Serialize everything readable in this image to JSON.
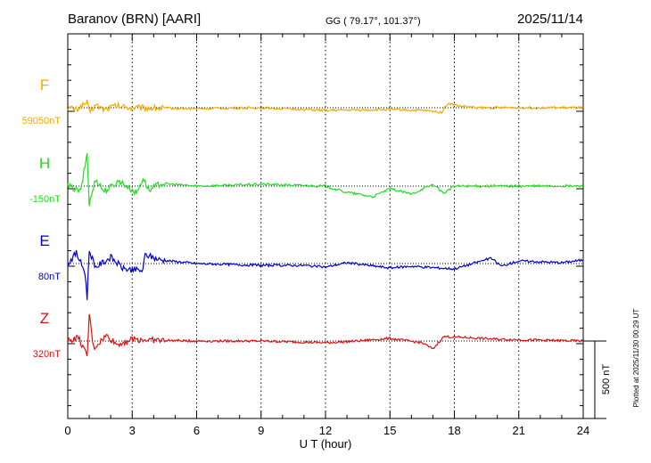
{
  "header": {
    "station": "Baranov (BRN)  [AARI]",
    "coords": "GG ( 79.17°, 101.37°)",
    "date": "2025/11/14"
  },
  "side_note": "Plotted at 2025/11/30 00:29 UT",
  "chart_data": {
    "type": "line",
    "title": "",
    "xlabel": "U T (hour)",
    "ylabel": "",
    "xlim": [
      0,
      24
    ],
    "x_ticks": [
      "0",
      "3",
      "6",
      "9",
      "12",
      "15",
      "18",
      "21",
      "24"
    ],
    "grid": "dotted vertical every 3 h, dotted baseline per trace",
    "scale_bar": {
      "label": "500 nT",
      "value_nT": 500
    },
    "series": [
      {
        "name": "F",
        "baseline": "59050nT",
        "color": "#f2a900",
        "points": [
          [
            0,
            0
          ],
          [
            0.4,
            -2
          ],
          [
            0.9,
            6
          ],
          [
            1.0,
            -5
          ],
          [
            1.3,
            3
          ],
          [
            1.7,
            -2
          ],
          [
            2.2,
            2
          ],
          [
            3,
            0
          ],
          [
            6,
            -1
          ],
          [
            9,
            0
          ],
          [
            12,
            -3
          ],
          [
            15,
            -2
          ],
          [
            16.5,
            -3
          ],
          [
            17.4,
            -5
          ],
          [
            17.7,
            5
          ],
          [
            18.2,
            2
          ],
          [
            19,
            0
          ],
          [
            21,
            0
          ],
          [
            24,
            0
          ]
        ]
      },
      {
        "name": "H",
        "baseline": "-150nT",
        "color": "#1fdd1f",
        "points": [
          [
            0,
            0
          ],
          [
            0.6,
            -6
          ],
          [
            0.9,
            37
          ],
          [
            1.0,
            -20
          ],
          [
            1.3,
            8
          ],
          [
            1.7,
            -6
          ],
          [
            2.4,
            6
          ],
          [
            3.2,
            -8
          ],
          [
            3.5,
            9
          ],
          [
            3.8,
            -5
          ],
          [
            4.3,
            3
          ],
          [
            6,
            0
          ],
          [
            9,
            2
          ],
          [
            12,
            0
          ],
          [
            12.8,
            -6
          ],
          [
            14.2,
            -12
          ],
          [
            15,
            -3
          ],
          [
            16,
            -9
          ],
          [
            17,
            2
          ],
          [
            17.5,
            -8
          ],
          [
            18,
            0
          ],
          [
            21,
            0
          ],
          [
            24,
            0
          ]
        ]
      },
      {
        "name": "E",
        "baseline": "80nT",
        "color": "#0000cc",
        "points": [
          [
            0,
            0
          ],
          [
            0.4,
            12
          ],
          [
            0.8,
            -10
          ],
          [
            0.9,
            -38
          ],
          [
            1.0,
            15
          ],
          [
            1.3,
            -4
          ],
          [
            2.0,
            7
          ],
          [
            2.6,
            -6
          ],
          [
            3.5,
            -8
          ],
          [
            3.6,
            10
          ],
          [
            4.3,
            4
          ],
          [
            6,
            0
          ],
          [
            9,
            -2
          ],
          [
            11,
            -2
          ],
          [
            12,
            -4
          ],
          [
            13,
            1
          ],
          [
            15,
            -5
          ],
          [
            16,
            -3
          ],
          [
            18,
            -6
          ],
          [
            19.7,
            6
          ],
          [
            20.2,
            -3
          ],
          [
            21,
            3
          ],
          [
            23,
            1
          ],
          [
            24,
            4
          ]
        ]
      },
      {
        "name": "Z",
        "baseline": "320nT",
        "color": "#e01010",
        "points": [
          [
            0,
            0
          ],
          [
            0.5,
            4
          ],
          [
            0.9,
            -18
          ],
          [
            1.0,
            30
          ],
          [
            1.2,
            -8
          ],
          [
            1.8,
            6
          ],
          [
            2.3,
            -4
          ],
          [
            3,
            2
          ],
          [
            4,
            1
          ],
          [
            6,
            0
          ],
          [
            9,
            0
          ],
          [
            12,
            -2
          ],
          [
            13.5,
            0
          ],
          [
            15,
            3
          ],
          [
            16.5,
            -2
          ],
          [
            17.0,
            -9
          ],
          [
            17.5,
            5
          ],
          [
            18.5,
            4
          ],
          [
            20,
            2
          ],
          [
            24,
            0
          ]
        ]
      }
    ]
  }
}
